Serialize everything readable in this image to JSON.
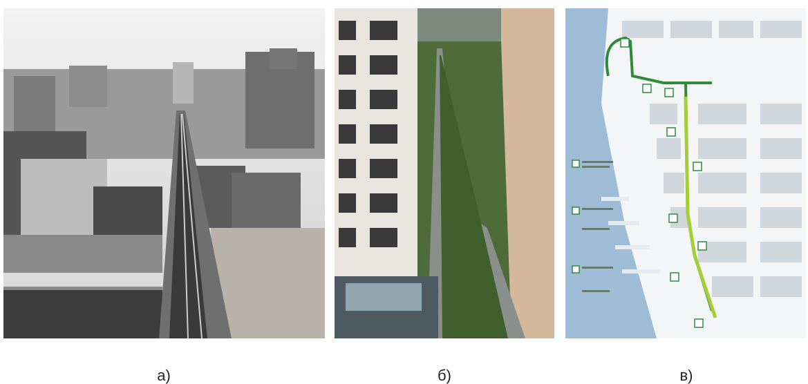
{
  "panels": [
    {
      "label": "а)"
    },
    {
      "label": "б)"
    },
    {
      "label": "в)"
    }
  ]
}
